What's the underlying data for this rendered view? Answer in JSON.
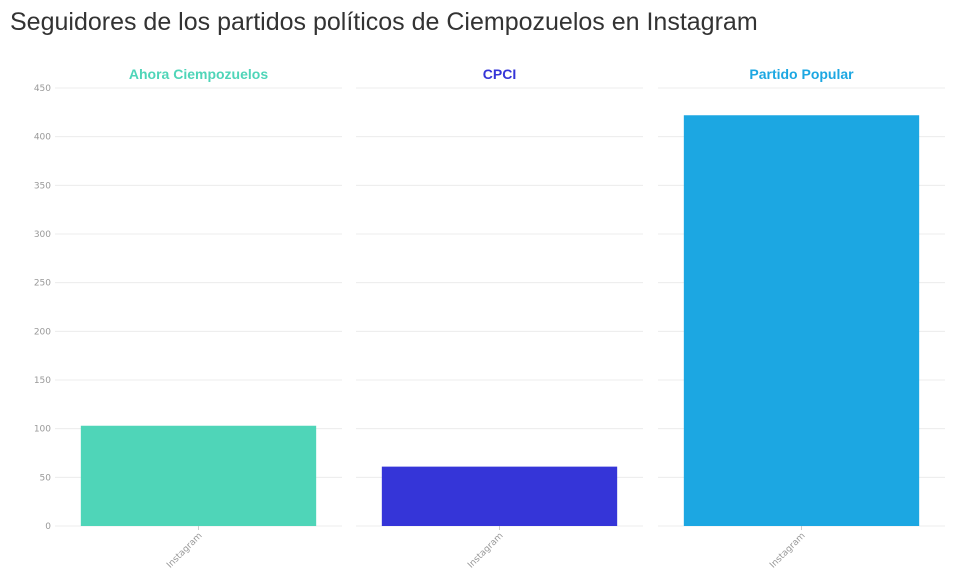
{
  "chart_data": {
    "type": "bar",
    "title": "Seguidores de los partidos políticos de Ciempozuelos en Instagram",
    "ylim": [
      0,
      450
    ],
    "yticks": [
      0,
      50,
      100,
      150,
      200,
      250,
      300,
      350,
      400,
      450
    ],
    "panels": [
      {
        "name": "Ahora Ciempozuelos",
        "color": "#4fd5b8",
        "categories": [
          "Instagram"
        ],
        "values": [
          103
        ]
      },
      {
        "name": "CPCI",
        "color": "#3535d8",
        "categories": [
          "Instagram"
        ],
        "values": [
          61
        ]
      },
      {
        "name": "Partido Popular",
        "color": "#1ca7e2",
        "categories": [
          "Instagram"
        ],
        "values": [
          422
        ]
      }
    ]
  }
}
